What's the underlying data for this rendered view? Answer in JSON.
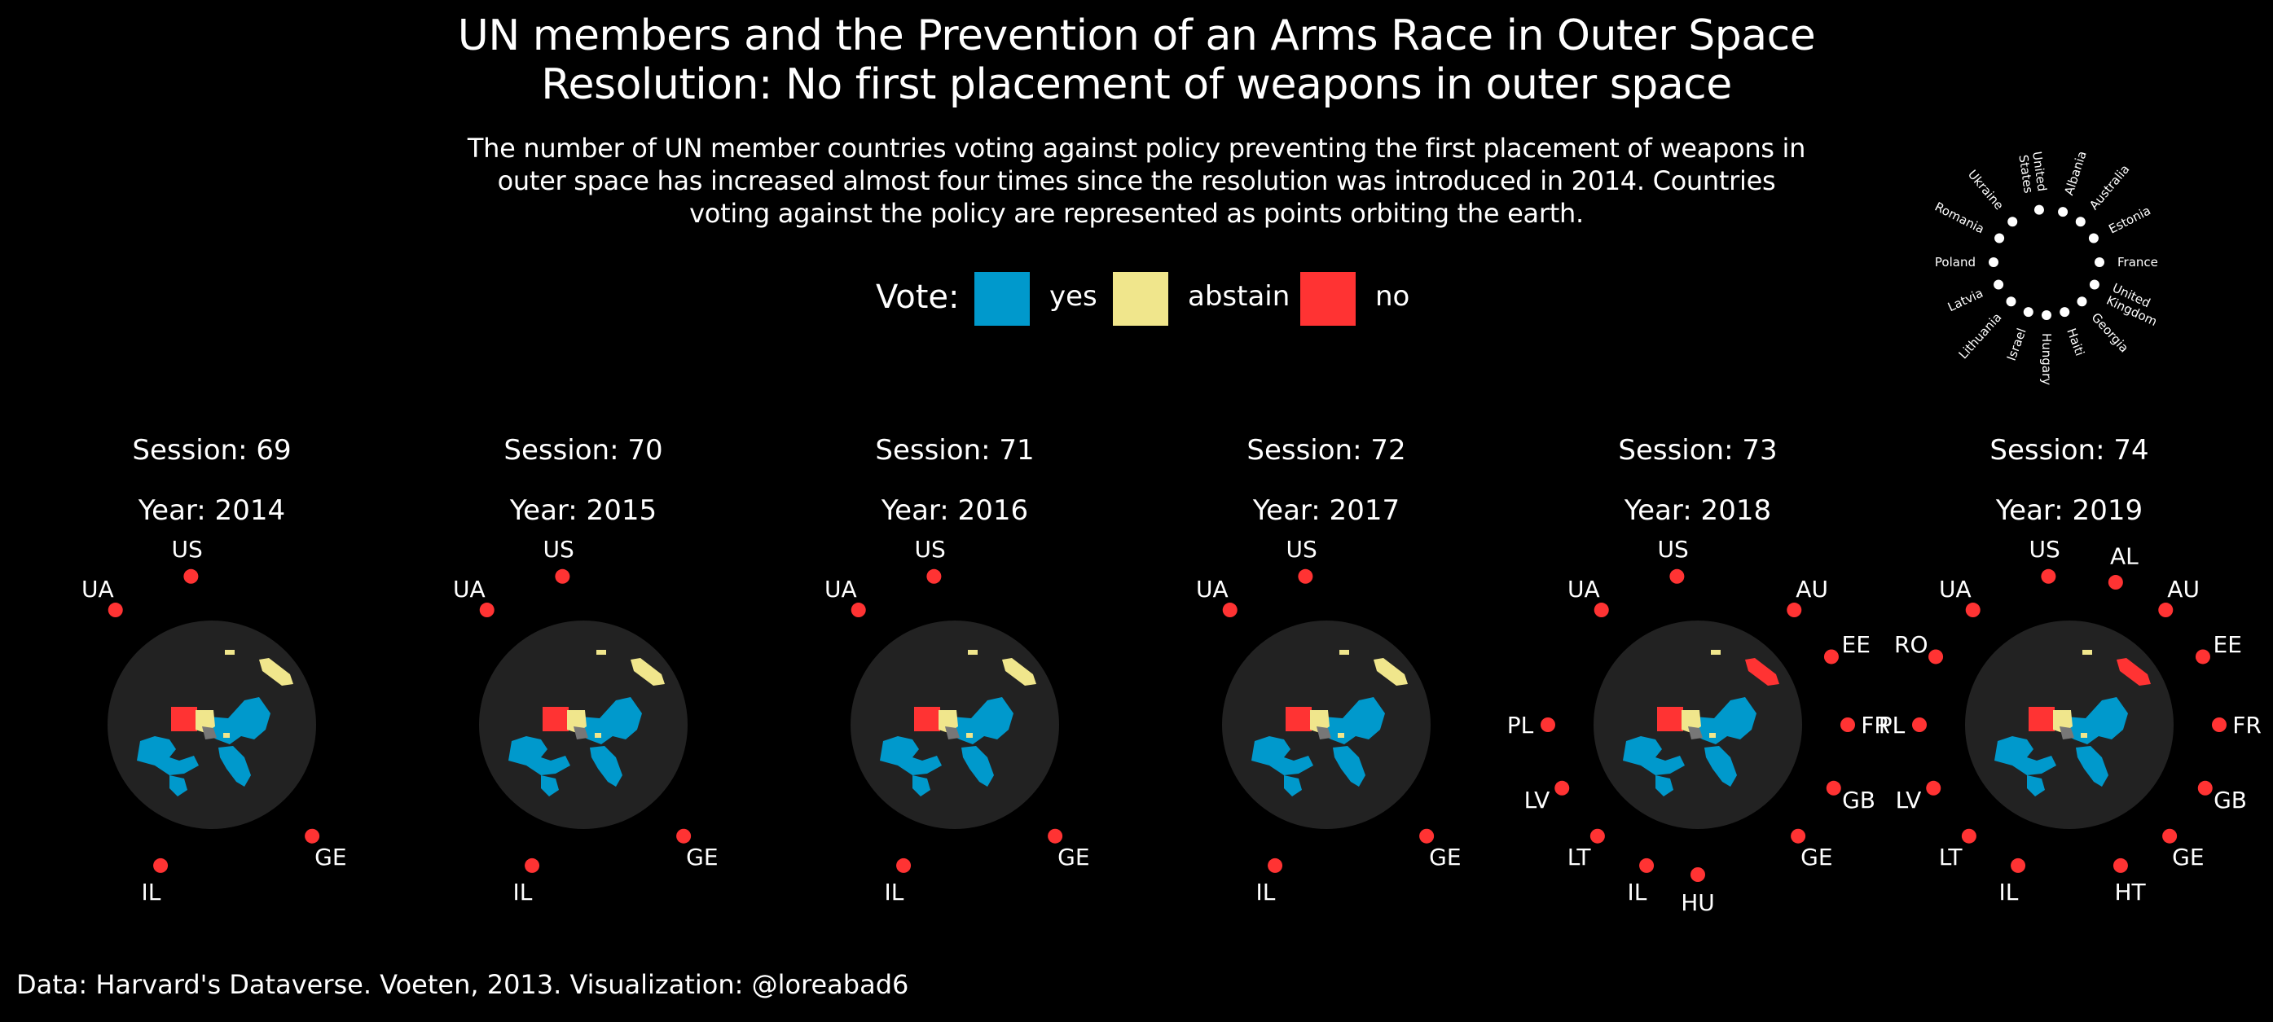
{
  "title_line1": "UN members and the Prevention of an Arms Race in Outer Space",
  "title_line2": "Resolution: No first placement of weapons in outer space",
  "subtitle_lines": [
    "The number of UN member countries voting against policy preventing the first placement of weapons in",
    "outer space has increased almost four times since the resolution was introduced in 2014. Countries",
    "voting against the policy are represented as points orbiting the earth."
  ],
  "legend": {
    "title": "Vote:",
    "items": [
      {
        "label": "yes",
        "color": "#0099cc"
      },
      {
        "label": "abstain",
        "color": "#f0e68c"
      },
      {
        "label": "no",
        "color": "#ff3333"
      }
    ]
  },
  "source": "Data: Harvard's Dataverse. Voeten, 2013. Visualization: @loreabad6",
  "colors": {
    "yes": "#0099cc",
    "abstain": "#f0e68c",
    "no": "#ff3333",
    "globe": "#222222",
    "land_other": "#777777"
  },
  "chart_data": {
    "type": "scatter",
    "description_key": {
      "countries": [
        "Albania",
        "Australia",
        "Estonia",
        "France",
        "United Kingdom",
        "Georgia",
        "Haiti",
        "Hungary",
        "Israel",
        "Lithuania",
        "Latvia",
        "Poland",
        "Romania",
        "Ukraine",
        "United States"
      ],
      "labels": [
        "Albania",
        "Australia",
        "Estonia",
        "France",
        "United\nKingdom",
        "Georgia",
        "Haiti",
        "Hungary",
        "Israel",
        "Lithuania",
        "Latvia",
        "Poland",
        "Romania",
        "Ukraine",
        "United\nStates"
      ]
    },
    "sessions": [
      {
        "session_label": "Session: 69",
        "year_label": "Year: 2014",
        "no_votes": [
          "GE",
          "IL",
          "UA",
          "US"
        ]
      },
      {
        "session_label": "Session: 70",
        "year_label": "Year: 2015",
        "no_votes": [
          "GE",
          "IL",
          "UA",
          "US"
        ]
      },
      {
        "session_label": "Session: 71",
        "year_label": "Year: 2016",
        "no_votes": [
          "GE",
          "IL",
          "UA",
          "US"
        ]
      },
      {
        "session_label": "Session: 72",
        "year_label": "Year: 2017",
        "no_votes": [
          "GE",
          "IL",
          "UA",
          "US"
        ]
      },
      {
        "session_label": "Session: 73",
        "year_label": "Year: 2018",
        "no_votes": [
          "AU",
          "EE",
          "FR",
          "GB",
          "GE",
          "HU",
          "IL",
          "LT",
          "LV",
          "PL",
          "UA",
          "US"
        ]
      },
      {
        "session_label": "Session: 74",
        "year_label": "Year: 2019",
        "no_votes": [
          "AL",
          "AU",
          "EE",
          "FR",
          "GB",
          "GE",
          "HT",
          "IL",
          "LT",
          "LV",
          "PL",
          "RO",
          "UA",
          "US"
        ]
      }
    ]
  }
}
